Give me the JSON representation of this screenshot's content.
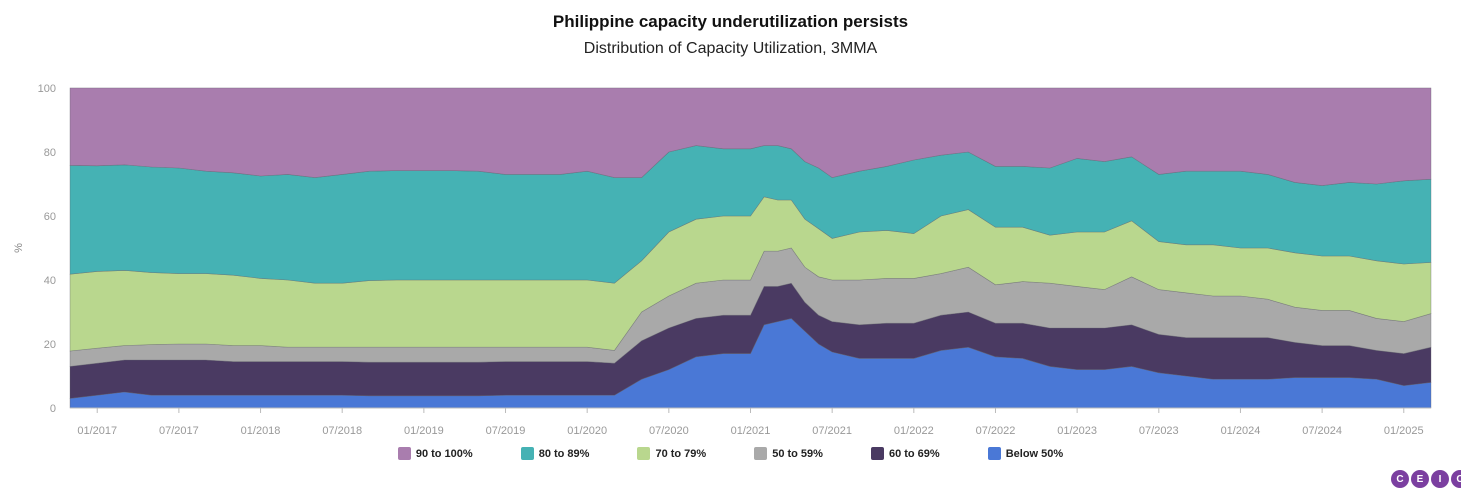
{
  "chart_data": {
    "type": "area",
    "stacked": true,
    "title": "Philippine capacity underutilization persists",
    "subtitle": "Distribution of Capacity Utilization, 3MMA",
    "ylabel": "%",
    "ylim": [
      0,
      100
    ],
    "yticks": [
      "0",
      "20",
      "40",
      "60",
      "80",
      "100"
    ],
    "xticks": [
      "01/2017",
      "07/2017",
      "01/2018",
      "07/2018",
      "01/2019",
      "07/2019",
      "01/2020",
      "07/2020",
      "01/2021",
      "07/2021",
      "01/2022",
      "07/2022",
      "01/2023",
      "07/2023",
      "01/2024",
      "07/2024",
      "01/2025"
    ],
    "x": [
      "11/2016",
      "01/2017",
      "03/2017",
      "05/2017",
      "07/2017",
      "09/2017",
      "11/2017",
      "01/2018",
      "03/2018",
      "05/2018",
      "07/2018",
      "09/2018",
      "11/2018",
      "01/2019",
      "03/2019",
      "05/2019",
      "07/2019",
      "09/2019",
      "11/2019",
      "01/2020",
      "03/2020",
      "05/2020",
      "07/2020",
      "09/2020",
      "11/2020",
      "01/2021",
      "02/2021",
      "03/2021",
      "04/2021",
      "05/2021",
      "06/2021",
      "07/2021",
      "09/2021",
      "11/2021",
      "01/2022",
      "03/2022",
      "05/2022",
      "07/2022",
      "09/2022",
      "11/2022",
      "01/2023",
      "03/2023",
      "05/2023",
      "07/2023",
      "09/2023",
      "11/2023",
      "01/2024",
      "03/2024",
      "05/2024",
      "07/2024",
      "09/2024",
      "11/2024",
      "01/2025",
      "03/2025"
    ],
    "grid": true,
    "legend_position": "bottom",
    "series": [
      {
        "name": "Below 50%",
        "color": "#4a78d6",
        "values": [
          3,
          4,
          5,
          4,
          4,
          4,
          4,
          4,
          4,
          4,
          4,
          3.8,
          3.8,
          3.8,
          3.8,
          3.8,
          4,
          4,
          4,
          4,
          4,
          9,
          12,
          16,
          17,
          17,
          26,
          27,
          28,
          24,
          20,
          17.5,
          15.5,
          15.5,
          15.5,
          18,
          19,
          16,
          15.5,
          13,
          12,
          12,
          13,
          11,
          10,
          9,
          9,
          9,
          9.5,
          9.5,
          9.5,
          9,
          7,
          8
        ]
      },
      {
        "name": "60 to 69%",
        "color": "#4a3a62",
        "values": [
          10,
          10,
          10,
          11,
          11,
          11,
          10.5,
          10.5,
          10.5,
          10.5,
          10.5,
          10.5,
          10.5,
          10.5,
          10.5,
          10.5,
          10.5,
          10.5,
          10.5,
          10.5,
          10,
          12,
          13,
          12,
          12,
          12,
          12,
          11,
          11,
          9,
          9,
          9.5,
          10.5,
          11,
          11,
          11,
          11,
          10.5,
          11,
          12,
          13,
          13,
          13,
          12,
          12,
          13,
          13,
          13,
          11,
          10,
          10,
          9,
          10,
          11
        ]
      },
      {
        "name": "50 to 59%",
        "color": "#a9a9a9",
        "values": [
          4.8,
          4.7,
          4.5,
          4.8,
          5,
          5,
          5,
          5,
          4.5,
          4.5,
          4.5,
          4.7,
          4.7,
          4.7,
          4.7,
          4.7,
          4.5,
          4.5,
          4.5,
          4.5,
          4,
          9,
          10,
          11,
          11,
          11,
          11,
          11,
          11,
          11,
          12,
          13,
          14,
          14,
          14,
          13,
          14,
          12,
          13,
          14,
          13,
          12,
          15,
          14,
          14,
          13,
          13,
          12,
          11,
          11,
          11,
          10,
          10,
          10.5
        ]
      },
      {
        "name": "70 to 79%",
        "color": "#b9d78e",
        "values": [
          24,
          24,
          23.5,
          22.5,
          22,
          22,
          22,
          21,
          21,
          20,
          20,
          20.8,
          21,
          21,
          21,
          21,
          21,
          21,
          21,
          21,
          21,
          16,
          20,
          20,
          20,
          20,
          17,
          16,
          15,
          15,
          15,
          13,
          15,
          15,
          14,
          18,
          18,
          18,
          17,
          15,
          17,
          18,
          17.5,
          15,
          15,
          16,
          15,
          16,
          17,
          17,
          17,
          18,
          18,
          16
        ]
      },
      {
        "name": "80 to 89%",
        "color": "#45b2b4",
        "values": [
          34,
          33,
          33,
          33,
          33,
          32,
          32,
          32,
          33,
          33,
          34,
          34.2,
          34.2,
          34.2,
          34.2,
          34,
          33,
          33,
          33,
          34,
          33,
          26,
          25,
          23,
          21,
          21,
          16,
          17,
          16,
          18,
          19,
          19,
          19,
          20,
          23,
          19,
          18,
          19,
          19,
          21,
          23,
          22,
          20,
          21,
          23,
          23,
          24,
          23,
          22,
          22,
          23,
          24,
          26,
          26
        ]
      },
      {
        "name": "90 to 100%",
        "color": "#a97dae",
        "values": [
          24.2,
          24.3,
          24,
          24.7,
          25,
          26,
          26.5,
          27.5,
          27,
          28,
          27,
          26.8,
          26.8,
          26.8,
          26.8,
          27,
          27,
          27,
          27,
          26,
          28,
          28,
          20,
          18,
          19,
          19,
          18,
          18,
          19,
          23,
          25,
          28,
          26,
          24.5,
          22.5,
          21,
          20,
          24.5,
          24.5,
          25,
          22,
          23,
          21.5,
          27,
          26,
          26,
          26,
          27,
          29.5,
          30.5,
          29.5,
          30,
          29,
          28.5
        ]
      }
    ]
  },
  "legend": [
    {
      "label": "90 to 100%",
      "color": "#a97dae"
    },
    {
      "label": "80 to 89%",
      "color": "#45b2b4"
    },
    {
      "label": "70 to 79%",
      "color": "#b9d78e"
    },
    {
      "label": "50 to 59%",
      "color": "#a9a9a9"
    },
    {
      "label": "60 to 69%",
      "color": "#4a3a62"
    },
    {
      "label": "Below 50%",
      "color": "#4a78d6"
    }
  ],
  "logo": {
    "letters": [
      "C",
      "E",
      "I",
      "C"
    ],
    "color": "#7b3fa0"
  }
}
